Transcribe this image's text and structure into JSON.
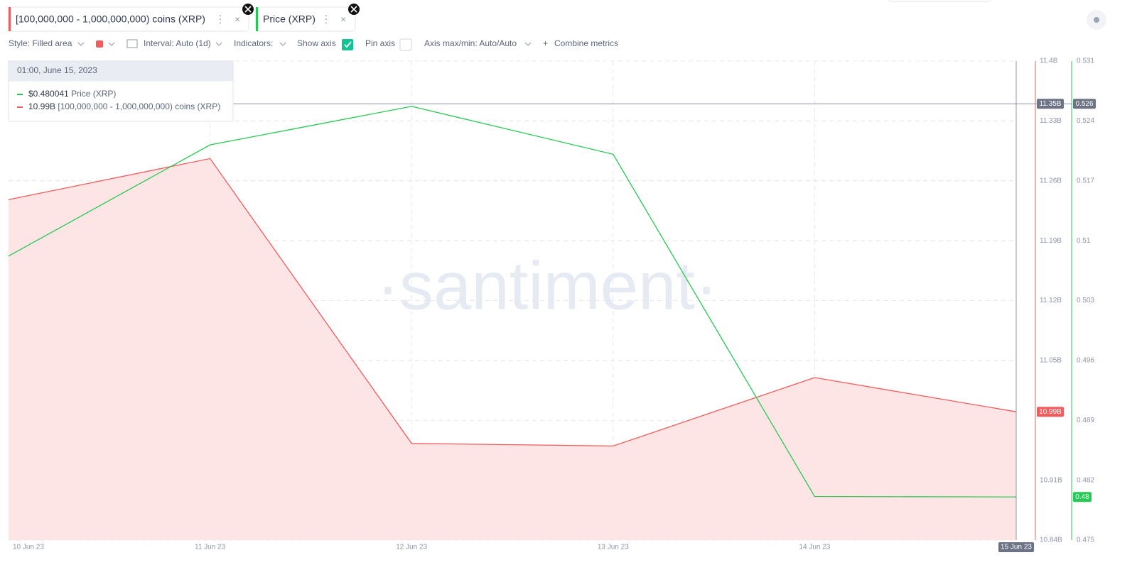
{
  "chart_data": {
    "type": "line",
    "categories": [
      "10 Jun 23",
      "11 Jun 23",
      "12 Jun 23",
      "13 Jun 23",
      "14 Jun 23",
      "15 Jun 23"
    ],
    "series": [
      {
        "name": "[100,000,000 - 1,000,000,000) coins (XRP)",
        "color": "#f45b5b",
        "fill": "#fde4e5",
        "style": "Filled area",
        "values": [
          11.238,
          11.286,
          10.953,
          10.95,
          11.03,
          10.99
        ],
        "value_labels": [
          null,
          null,
          null,
          null,
          null,
          "10.99B"
        ]
      },
      {
        "name": "Price (XRP)",
        "color": "#26c953",
        "axis": "y2",
        "values": [
          0.5082,
          0.5212,
          0.5257,
          0.5201,
          0.4801,
          0.480041
        ],
        "value_labels": [
          null,
          null,
          null,
          null,
          null,
          "0.48"
        ]
      }
    ],
    "ylim": [
      10.84,
      11.4
    ],
    "yticks": [
      {
        "value": 11.4,
        "label": "11.4B"
      },
      {
        "value": 11.33,
        "label": "11.33B"
      },
      {
        "value": 11.26,
        "label": "11.26B"
      },
      {
        "value": 11.19,
        "label": "11.19B"
      },
      {
        "value": 11.12,
        "label": "11.12B"
      },
      {
        "value": 11.05,
        "label": "11.05B"
      },
      {
        "value": 10.91,
        "label": "10.91B"
      },
      {
        "value": 10.84,
        "label": "10.84B"
      }
    ],
    "y2lim": [
      0.475,
      0.531
    ],
    "y2ticks": [
      0.531,
      0.524,
      0.517,
      0.51,
      0.503,
      0.496,
      0.489,
      0.482,
      0.475
    ],
    "grid": true,
    "crosshair": {
      "y": 11.35,
      "y_label": "11.35B",
      "y2": 0.526,
      "x_index": 5
    },
    "watermark": "·santiment·"
  },
  "ui": {
    "toolbar": {
      "style": "Style: Filled area",
      "interval": "Interval: Auto (1d)",
      "indicators": "Indicators:",
      "show_axis": "Show axis",
      "pin_axis": "Pin axis",
      "axis_minmax": "Axis max/min: Auto/Auto",
      "combine": "Combine metrics"
    },
    "tooltip": {
      "title": "01:00, June 15, 2023",
      "rows": [
        {
          "value": "$0.480041",
          "series": 1
        },
        {
          "value": "10.99B",
          "series": 0
        }
      ]
    }
  }
}
